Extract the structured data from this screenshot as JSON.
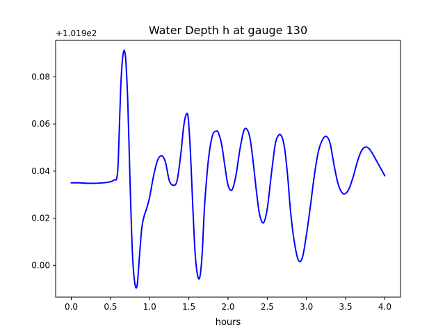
{
  "chart_data": {
    "type": "line",
    "title": "Water Depth h at gauge 130",
    "xlabel": "hours",
    "ylabel": "",
    "offset_text": "+1.019e2",
    "xlim": [
      -0.2,
      4.2
    ],
    "ylim": [
      -0.0135,
      0.0955
    ],
    "xticks": [
      0.0,
      0.5,
      1.0,
      1.5,
      2.0,
      2.5,
      3.0,
      3.5,
      4.0
    ],
    "xtick_labels": [
      "0.0",
      "0.5",
      "1.0",
      "1.5",
      "2.0",
      "2.5",
      "3.0",
      "3.5",
      "4.0"
    ],
    "yticks": [
      0.0,
      0.02,
      0.04,
      0.06,
      0.08
    ],
    "ytick_labels": [
      "0.00",
      "0.02",
      "0.04",
      "0.06",
      "0.08"
    ],
    "grid": false,
    "series": [
      {
        "color": "#0000ff",
        "x": [
          0.0,
          0.1,
          0.25,
          0.4,
          0.5,
          0.55,
          0.58,
          0.6,
          0.63,
          0.66,
          0.69,
          0.72,
          0.75,
          0.78,
          0.81,
          0.84,
          0.87,
          0.9,
          0.93,
          0.96,
          1.0,
          1.05,
          1.1,
          1.15,
          1.2,
          1.25,
          1.3,
          1.35,
          1.4,
          1.43,
          1.46,
          1.49,
          1.52,
          1.55,
          1.58,
          1.61,
          1.64,
          1.67,
          1.7,
          1.75,
          1.8,
          1.85,
          1.88,
          1.92,
          1.96,
          2.0,
          2.05,
          2.1,
          2.15,
          2.2,
          2.24,
          2.28,
          2.32,
          2.36,
          2.4,
          2.45,
          2.5,
          2.55,
          2.6,
          2.64,
          2.68,
          2.72,
          2.76,
          2.8,
          2.85,
          2.9,
          2.95,
          3.0,
          3.05,
          3.1,
          3.15,
          3.2,
          3.25,
          3.3,
          3.35,
          3.4,
          3.45,
          3.5,
          3.55,
          3.6,
          3.65,
          3.7,
          3.75,
          3.8,
          3.85,
          3.9,
          3.95,
          4.0
        ],
        "y": [
          0.035,
          0.035,
          0.0348,
          0.035,
          0.0355,
          0.0363,
          0.037,
          0.045,
          0.075,
          0.0895,
          0.089,
          0.07,
          0.035,
          0.005,
          -0.0075,
          -0.0085,
          0.004,
          0.016,
          0.021,
          0.024,
          0.029,
          0.038,
          0.0445,
          0.0465,
          0.044,
          0.036,
          0.034,
          0.036,
          0.048,
          0.058,
          0.0635,
          0.063,
          0.048,
          0.025,
          0.005,
          -0.004,
          -0.005,
          0.005,
          0.025,
          0.045,
          0.055,
          0.057,
          0.056,
          0.051,
          0.042,
          0.034,
          0.032,
          0.038,
          0.049,
          0.057,
          0.0578,
          0.054,
          0.044,
          0.032,
          0.022,
          0.018,
          0.024,
          0.038,
          0.051,
          0.055,
          0.055,
          0.05,
          0.038,
          0.022,
          0.009,
          0.002,
          0.0035,
          0.013,
          0.025,
          0.038,
          0.048,
          0.053,
          0.0548,
          0.052,
          0.043,
          0.035,
          0.031,
          0.0305,
          0.033,
          0.038,
          0.044,
          0.0485,
          0.0502,
          0.0495,
          0.047,
          0.044,
          0.041,
          0.038
        ]
      }
    ]
  }
}
